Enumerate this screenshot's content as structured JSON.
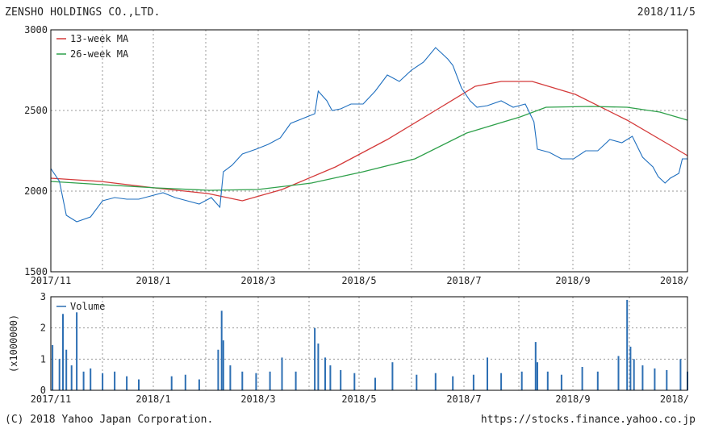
{
  "header": {
    "company": "ZENSHO HOLDINGS CO.,LTD.",
    "date": "2018/11/5"
  },
  "footer": {
    "copyright": "(C) 2018 Yahoo Japan Corporation.",
    "source": "https://stocks.finance.yahoo.co.jp"
  },
  "colors": {
    "price": "#1f6fbf",
    "ma13": "#d43a3a",
    "ma26": "#2ea04a",
    "volume": "#2d6fb3",
    "grid": "#9a9a9a",
    "axis": "#000000"
  },
  "chart_data": [
    {
      "type": "line",
      "title": "",
      "x_ticks": [
        "2017/11",
        "2018/1",
        "2018/3",
        "2018/5",
        "2018/7",
        "2018/9",
        "2018/"
      ],
      "y_ticks": [
        "3000",
        "2500",
        "2000",
        "1500"
      ],
      "ylim": [
        1500,
        3000
      ],
      "xlim": [
        "2017-11-01",
        "2018-11-05"
      ],
      "grid": true,
      "legend_position": "top-left",
      "series": [
        {
          "name": "price",
          "x": [
            "2017-11-01",
            "2017-11-06",
            "2017-11-10",
            "2017-11-16",
            "2017-11-24",
            "2017-12-01",
            "2017-12-08",
            "2017-12-15",
            "2017-12-22",
            "2017-12-29",
            "2018-01-05",
            "2018-01-12",
            "2018-01-19",
            "2018-01-26",
            "2018-02-02",
            "2018-02-07",
            "2018-02-09",
            "2018-02-14",
            "2018-02-20",
            "2018-02-28",
            "2018-03-07",
            "2018-03-14",
            "2018-03-20",
            "2018-03-27",
            "2018-04-03",
            "2018-04-05",
            "2018-04-10",
            "2018-04-13",
            "2018-04-18",
            "2018-04-24",
            "2018-05-01",
            "2018-05-08",
            "2018-05-15",
            "2018-05-22",
            "2018-05-29",
            "2018-06-05",
            "2018-06-12",
            "2018-06-19",
            "2018-06-22",
            "2018-06-27",
            "2018-07-02",
            "2018-07-06",
            "2018-07-12",
            "2018-07-20",
            "2018-07-27",
            "2018-08-03",
            "2018-08-08",
            "2018-08-10",
            "2018-08-17",
            "2018-08-24",
            "2018-08-31",
            "2018-09-07",
            "2018-09-14",
            "2018-09-21",
            "2018-09-28",
            "2018-10-04",
            "2018-10-10",
            "2018-10-16",
            "2018-10-19",
            "2018-10-23",
            "2018-10-26",
            "2018-10-31",
            "2018-11-02",
            "2018-11-05"
          ],
          "values": [
            2140,
            2060,
            1850,
            1810,
            1840,
            1940,
            1960,
            1950,
            1950,
            1970,
            1990,
            1960,
            1940,
            1920,
            1960,
            1900,
            2120,
            2160,
            2230,
            2260,
            2290,
            2330,
            2420,
            2450,
            2480,
            2620,
            2560,
            2500,
            2510,
            2540,
            2540,
            2620,
            2720,
            2680,
            2750,
            2800,
            2890,
            2820,
            2780,
            2640,
            2560,
            2520,
            2530,
            2560,
            2520,
            2540,
            2430,
            2260,
            2240,
            2200,
            2200,
            2250,
            2250,
            2320,
            2300,
            2340,
            2210,
            2150,
            2090,
            2050,
            2080,
            2110,
            2200,
            2200
          ]
        },
        {
          "name": "13-week MA",
          "x": [
            "2017-11-01",
            "2017-11-30",
            "2017-12-31",
            "2018-01-31",
            "2018-02-20",
            "2018-03-15",
            "2018-04-15",
            "2018-05-15",
            "2018-06-15",
            "2018-07-05",
            "2018-07-20",
            "2018-08-07",
            "2018-09-01",
            "2018-10-01",
            "2018-10-25",
            "2018-11-05"
          ],
          "values": [
            2080,
            2060,
            2020,
            1985,
            1940,
            2010,
            2150,
            2320,
            2520,
            2650,
            2680,
            2680,
            2600,
            2440,
            2290,
            2220
          ]
        },
        {
          "name": "26-week MA",
          "x": [
            "2017-11-01",
            "2017-12-01",
            "2018-01-01",
            "2018-02-01",
            "2018-03-01",
            "2018-04-01",
            "2018-05-01",
            "2018-05-31",
            "2018-06-30",
            "2018-07-31",
            "2018-08-15",
            "2018-09-10",
            "2018-10-01",
            "2018-10-20",
            "2018-11-05"
          ],
          "values": [
            2060,
            2040,
            2020,
            2005,
            2010,
            2050,
            2120,
            2200,
            2360,
            2460,
            2520,
            2525,
            2520,
            2490,
            2440
          ]
        }
      ]
    },
    {
      "type": "bar",
      "title": "",
      "x_ticks": [
        "2017/11",
        "2018/1",
        "2018/3",
        "2018/5",
        "2018/7",
        "2018/9",
        "2018/"
      ],
      "y_ticks": [
        "3",
        "2",
        "1",
        "0"
      ],
      "ylim": [
        0,
        3
      ],
      "ylabel": "(x1000000)",
      "legend_position": "top-left",
      "series": [
        {
          "name": "Volume",
          "x": [
            "2017-11-02",
            "2017-11-06",
            "2017-11-08",
            "2017-11-10",
            "2017-11-13",
            "2017-11-16",
            "2017-11-20",
            "2017-11-24",
            "2017-12-01",
            "2017-12-08",
            "2017-12-15",
            "2017-12-22",
            "2018-01-10",
            "2018-01-18",
            "2018-01-26",
            "2018-02-06",
            "2018-02-08",
            "2018-02-09",
            "2018-02-13",
            "2018-02-20",
            "2018-02-28",
            "2018-03-08",
            "2018-03-15",
            "2018-03-23",
            "2018-04-03",
            "2018-04-05",
            "2018-04-09",
            "2018-04-12",
            "2018-04-18",
            "2018-04-26",
            "2018-05-08",
            "2018-05-18",
            "2018-06-01",
            "2018-06-12",
            "2018-06-22",
            "2018-07-04",
            "2018-07-12",
            "2018-07-20",
            "2018-08-01",
            "2018-08-09",
            "2018-08-10",
            "2018-08-16",
            "2018-08-24",
            "2018-09-05",
            "2018-09-14",
            "2018-09-26",
            "2018-10-01",
            "2018-10-03",
            "2018-10-05",
            "2018-10-10",
            "2018-10-17",
            "2018-10-24",
            "2018-11-01",
            "2018-11-05"
          ],
          "values": [
            1.45,
            1.0,
            2.45,
            1.3,
            0.8,
            2.5,
            0.6,
            0.7,
            0.55,
            0.6,
            0.45,
            0.35,
            0.45,
            0.5,
            0.35,
            1.3,
            2.55,
            1.6,
            0.8,
            0.6,
            0.55,
            0.6,
            1.05,
            0.6,
            2.0,
            1.5,
            1.05,
            0.8,
            0.65,
            0.55,
            0.4,
            0.9,
            0.5,
            0.55,
            0.45,
            0.5,
            1.05,
            0.55,
            0.6,
            1.55,
            0.9,
            0.6,
            0.5,
            0.75,
            0.6,
            1.1,
            2.9,
            1.4,
            1.0,
            0.8,
            0.7,
            0.65,
            1.0,
            0.6
          ]
        }
      ]
    }
  ]
}
